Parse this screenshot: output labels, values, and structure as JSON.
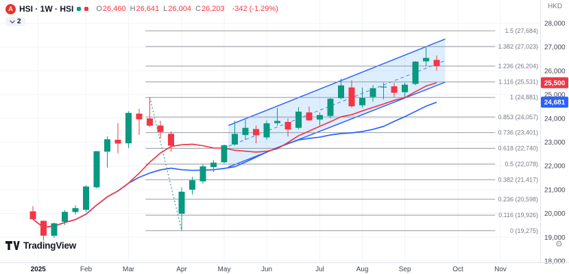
{
  "app": {
    "watermark": "TradingView"
  },
  "legend": {
    "logo_letter": "A",
    "title": "HSI · 1W · HSI",
    "collapsed_count": "2",
    "ohlc_labels": {
      "o": "O",
      "h": "H",
      "l": "L",
      "c": "C"
    },
    "ohlc": {
      "o": "26,460",
      "h": "26,641",
      "l": "26,004",
      "c": "26,203"
    },
    "change": "-342 (-1.29%)"
  },
  "price_axis": {
    "currency": "HKD",
    "price_labels": [
      {
        "text": "25,500",
        "price": 25500,
        "color": "#f23645"
      },
      {
        "text": "24,681",
        "price": 24681,
        "color": "#2962ff"
      }
    ]
  },
  "time_axis": {
    "ticks": [
      {
        "label": "2025",
        "i": 0.5,
        "strong": true
      },
      {
        "label": "Feb",
        "i": 5
      },
      {
        "label": "Mar",
        "i": 9
      },
      {
        "label": "Apr",
        "i": 14
      },
      {
        "label": "May",
        "i": 18
      },
      {
        "label": "Jun",
        "i": 22
      },
      {
        "label": "Jul",
        "i": 27
      },
      {
        "label": "Aug",
        "i": 31
      },
      {
        "label": "Sep",
        "i": 35
      },
      {
        "label": "Oct",
        "i": 40
      },
      {
        "label": "Nov",
        "i": 44
      }
    ]
  },
  "colors": {
    "up": "#089981",
    "down": "#f23645",
    "grid": "#f0f3fa",
    "axis_text": "#434651",
    "axis_strong": "#131722",
    "fib_line": "#9598a1",
    "fib_label": "#787b86",
    "fib_trend": "#2a9d8f",
    "channel_stroke": "#2962ff",
    "channel_fill": "rgba(41,152,255,0.16)",
    "logo_bg": "#e4352f",
    "dot_teal": "#089981",
    "dot_red": "#f23645"
  },
  "chart_data": {
    "type": "candlestick",
    "symbol": "HSI",
    "interval": "1W",
    "currency": "HKD",
    "title": "HSI · 1W · HSI",
    "y_axis": {
      "min": 18000,
      "max": 28000,
      "step": 1000
    },
    "last_bar": {
      "open": 26460,
      "high": 26641,
      "low": 26004,
      "close": 26203,
      "change": -342,
      "change_pct": -1.29
    },
    "columns": [
      "week_start",
      "open",
      "high",
      "low",
      "close"
    ],
    "candles": [
      [
        "2024-12-30",
        20090,
        20306,
        19764,
        19760
      ],
      [
        "2025-01-06",
        19690,
        19700,
        18856,
        19064
      ],
      [
        "2025-01-13",
        19060,
        19625,
        18971,
        19584
      ],
      [
        "2025-01-20",
        19650,
        20136,
        19508,
        20066
      ],
      [
        "2025-01-27",
        20060,
        20341,
        19954,
        20225
      ],
      [
        "2025-02-03",
        20150,
        21184,
        20064,
        21133
      ],
      [
        "2025-02-10",
        21100,
        22625,
        21050,
        22620
      ],
      [
        "2025-02-17",
        22600,
        23240,
        21930,
        23120
      ],
      [
        "2025-02-24",
        23100,
        23800,
        22530,
        22941
      ],
      [
        "2025-03-03",
        22950,
        24300,
        22750,
        24231
      ],
      [
        "2025-03-10",
        24200,
        24400,
        23300,
        23960
      ],
      [
        "2025-03-17",
        24000,
        24881,
        23640,
        23690
      ],
      [
        "2025-03-24",
        23700,
        23900,
        23150,
        23427
      ],
      [
        "2025-03-31",
        23350,
        23450,
        22600,
        22850
      ],
      [
        "2025-04-07",
        19987,
        21100,
        19275,
        20915
      ],
      [
        "2025-04-14",
        21000,
        21541,
        20800,
        21395
      ],
      [
        "2025-04-21",
        21350,
        22072,
        21250,
        21980
      ],
      [
        "2025-04-28",
        21950,
        22250,
        21750,
        22137
      ],
      [
        "2025-05-05",
        22150,
        22910,
        22100,
        22867
      ],
      [
        "2025-05-12",
        22900,
        23900,
        22850,
        23345
      ],
      [
        "2025-05-19",
        23300,
        23950,
        23100,
        23601
      ],
      [
        "2025-05-26",
        23550,
        23700,
        22950,
        23290
      ],
      [
        "2025-06-02",
        23200,
        23906,
        23100,
        23793
      ],
      [
        "2025-06-09",
        23800,
        24439,
        23700,
        23893
      ],
      [
        "2025-06-16",
        23850,
        24000,
        23237,
        23530
      ],
      [
        "2025-06-23",
        23600,
        24474,
        23550,
        24284
      ],
      [
        "2025-06-30",
        24250,
        24500,
        23900,
        23916
      ],
      [
        "2025-07-07",
        23950,
        24250,
        23700,
        24140
      ],
      [
        "2025-07-14",
        24100,
        24850,
        24000,
        24826
      ],
      [
        "2025-07-21",
        24850,
        25667,
        24800,
        25388
      ],
      [
        "2025-07-28",
        25300,
        25600,
        24450,
        24507
      ],
      [
        "2025-08-04",
        24550,
        25300,
        24450,
        24858
      ],
      [
        "2025-08-11",
        24900,
        25400,
        24700,
        25270
      ],
      [
        "2025-08-18",
        25300,
        25500,
        24800,
        25339
      ],
      [
        "2025-08-25",
        25350,
        25500,
        24900,
        25077
      ],
      [
        "2025-09-01",
        25100,
        25500,
        24900,
        25417
      ],
      [
        "2025-09-08",
        25450,
        26408,
        25400,
        26388
      ],
      [
        "2025-09-15",
        26400,
        26986,
        26200,
        26545
      ],
      [
        "2025-09-22",
        26460,
        26641,
        26004,
        26203
      ]
    ],
    "overlays": {
      "sma_fast": {
        "type": "sma",
        "period": 10,
        "color": "#f23645",
        "last_value_label": "25,500"
      },
      "sma_slow": {
        "type": "sma",
        "period": 20,
        "color": "#2962ff",
        "last_value_label": "24,681"
      },
      "fib_retracement": {
        "anchor_high": {
          "i": 11,
          "price": 24881
        },
        "anchor_low": {
          "i": 14,
          "price": 19275
        },
        "extent_i": [
          10.6,
          43.5
        ],
        "levels": [
          {
            "label": "1.5 (27,684)",
            "price": 27684
          },
          {
            "label": "1.382 (27,023)",
            "price": 27023
          },
          {
            "label": "1.236 (26,204)",
            "price": 26204
          },
          {
            "label": "1.116 (25,531)",
            "price": 25531
          },
          {
            "label": "1 (24,881)",
            "price": 24881
          },
          {
            "label": "0.853 (24,057)",
            "price": 24057
          },
          {
            "label": "0.736 (23,401)",
            "price": 23401
          },
          {
            "label": "0.618 (22,740)",
            "price": 22740
          },
          {
            "label": "0.5 (22,078)",
            "price": 22078
          },
          {
            "label": "0.382 (21,417)",
            "price": 21417
          },
          {
            "label": "0.236 (20,598)",
            "price": 20598
          },
          {
            "label": "0.116 (19,926)",
            "price": 19926
          },
          {
            "label": "0 (19,275)",
            "price": 19275
          }
        ]
      },
      "parallel_channel": {
        "i1": 18.4,
        "i2": 38.8,
        "lower": [
          21950,
          25522
        ],
        "upper": [
          23700,
          27337
        ]
      }
    }
  }
}
